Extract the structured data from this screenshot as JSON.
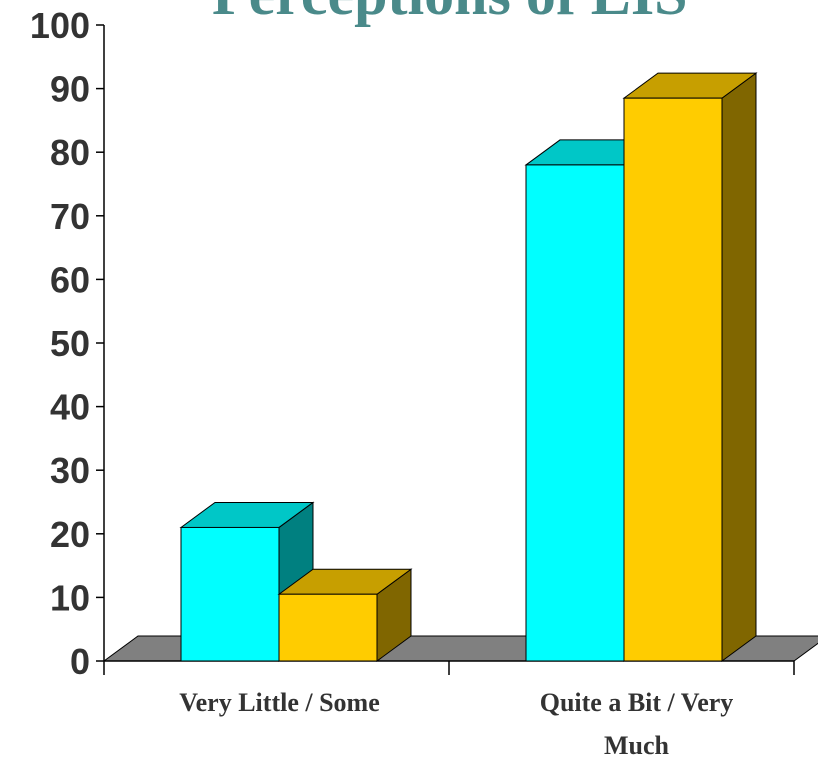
{
  "chart_data": {
    "type": "bar",
    "title": "Perceptions of LIS",
    "categories": [
      "Very Little / Some",
      "Quite a Bit / Very Much"
    ],
    "series": [
      {
        "values": [
          21,
          78
        ],
        "color": "#00ffff"
      },
      {
        "values": [
          10.5,
          88.5
        ],
        "color": "#ffcc00"
      }
    ],
    "ylim": [
      0,
      100
    ],
    "yticks": [
      "0",
      "10",
      "20",
      "30",
      "40",
      "50",
      "60",
      "70",
      "80",
      "90",
      "100"
    ],
    "grid": false,
    "style": "3d",
    "colors": {
      "title": "#4a8a8a",
      "floor": "#808080",
      "text": "#333333"
    }
  }
}
